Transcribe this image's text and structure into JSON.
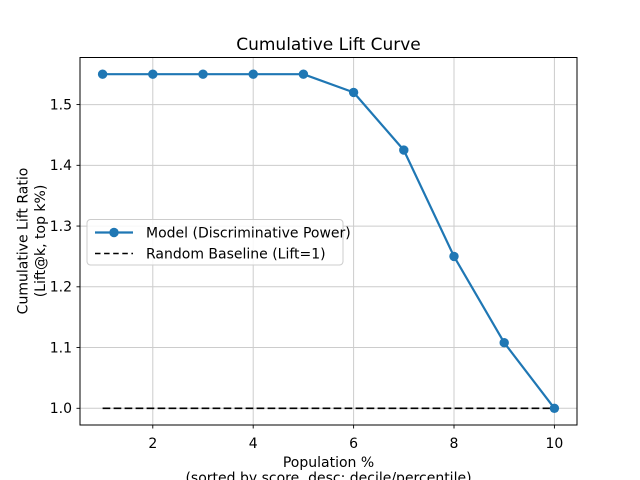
{
  "figure": {
    "background": "#ffffff"
  },
  "chart_data": {
    "type": "line",
    "title": "Cumulative Lift Curve",
    "xlabel": "Population %",
    "xlabel_note": "(sorted by score, desc: decile/percentile)",
    "ylabel": "Cumulative Lift Ratio",
    "ylabel_note": "(Lift@k, top k%)",
    "x": [
      1,
      2,
      3,
      4,
      5,
      6,
      7,
      8,
      9,
      10
    ],
    "series": [
      {
        "name": "Model (Discriminative Power)",
        "values": [
          1.55,
          1.55,
          1.55,
          1.55,
          1.55,
          1.52,
          1.425,
          1.25,
          1.108,
          1.0
        ],
        "color": "#1f77b4",
        "line_style": "solid",
        "marker": "circle"
      },
      {
        "name": "Random Baseline (Lift=1)",
        "values": [
          1.0,
          1.0,
          1.0,
          1.0,
          1.0,
          1.0,
          1.0,
          1.0,
          1.0,
          1.0
        ],
        "color": "#000000",
        "line_style": "dashed",
        "marker": "none"
      }
    ],
    "xlim": [
      0.55,
      10.45
    ],
    "ylim": [
      0.9725,
      1.5775
    ],
    "xticks": [
      2,
      4,
      6,
      8,
      10
    ],
    "xtick_labels": [
      "2",
      "4",
      "6",
      "8",
      "10"
    ],
    "yticks": [
      1.0,
      1.1,
      1.2,
      1.3,
      1.4,
      1.5
    ],
    "ytick_labels": [
      "1.0",
      "1.1",
      "1.2",
      "1.3",
      "1.4",
      "1.5"
    ],
    "grid": true,
    "grid_color": "#cccccc",
    "axis_color": "#000000",
    "legend_position": "center left"
  }
}
